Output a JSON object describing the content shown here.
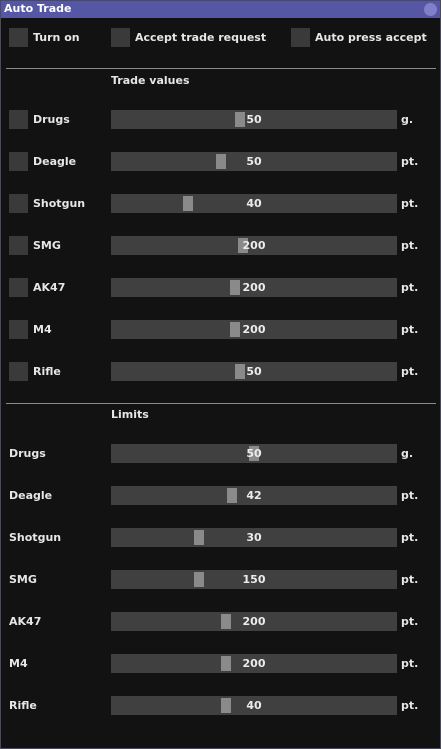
{
  "window": {
    "title": "Auto Trade"
  },
  "options": [
    {
      "label": "Turn on"
    },
    {
      "label": "Accept trade request"
    },
    {
      "label": "Auto press accept"
    }
  ],
  "trade_values": {
    "title": "Trade values",
    "rows": [
      {
        "label": "Drugs",
        "value": "50",
        "unit": "g.",
        "fraction": 0.45
      },
      {
        "label": "Deagle",
        "value": "50",
        "unit": "pt.",
        "fraction": 0.38
      },
      {
        "label": "Shotgun",
        "value": "40",
        "unit": "pt.",
        "fraction": 0.26
      },
      {
        "label": "SMG",
        "value": "200",
        "unit": "pt.",
        "fraction": 0.46
      },
      {
        "label": "AK47",
        "value": "200",
        "unit": "pt.",
        "fraction": 0.43
      },
      {
        "label": "M4",
        "value": "200",
        "unit": "pt.",
        "fraction": 0.43
      },
      {
        "label": "Rifle",
        "value": "50",
        "unit": "pt.",
        "fraction": 0.45
      }
    ]
  },
  "limits": {
    "title": "Limits",
    "rows": [
      {
        "label": "Drugs",
        "value": "50",
        "unit": "g.",
        "fraction": 0.5
      },
      {
        "label": "Deagle",
        "value": "42",
        "unit": "pt.",
        "fraction": 0.42
      },
      {
        "label": "Shotgun",
        "value": "30",
        "unit": "pt.",
        "fraction": 0.3
      },
      {
        "label": "SMG",
        "value": "150",
        "unit": "pt.",
        "fraction": 0.3
      },
      {
        "label": "AK47",
        "value": "200",
        "unit": "pt.",
        "fraction": 0.4
      },
      {
        "label": "M4",
        "value": "200",
        "unit": "pt.",
        "fraction": 0.4
      },
      {
        "label": "Rifle",
        "value": "40",
        "unit": "pt.",
        "fraction": 0.4
      }
    ]
  },
  "colors": {
    "titlebar": "#5556a4",
    "background": "#121212",
    "control": "#404040",
    "grab": "#8a8a8a"
  }
}
